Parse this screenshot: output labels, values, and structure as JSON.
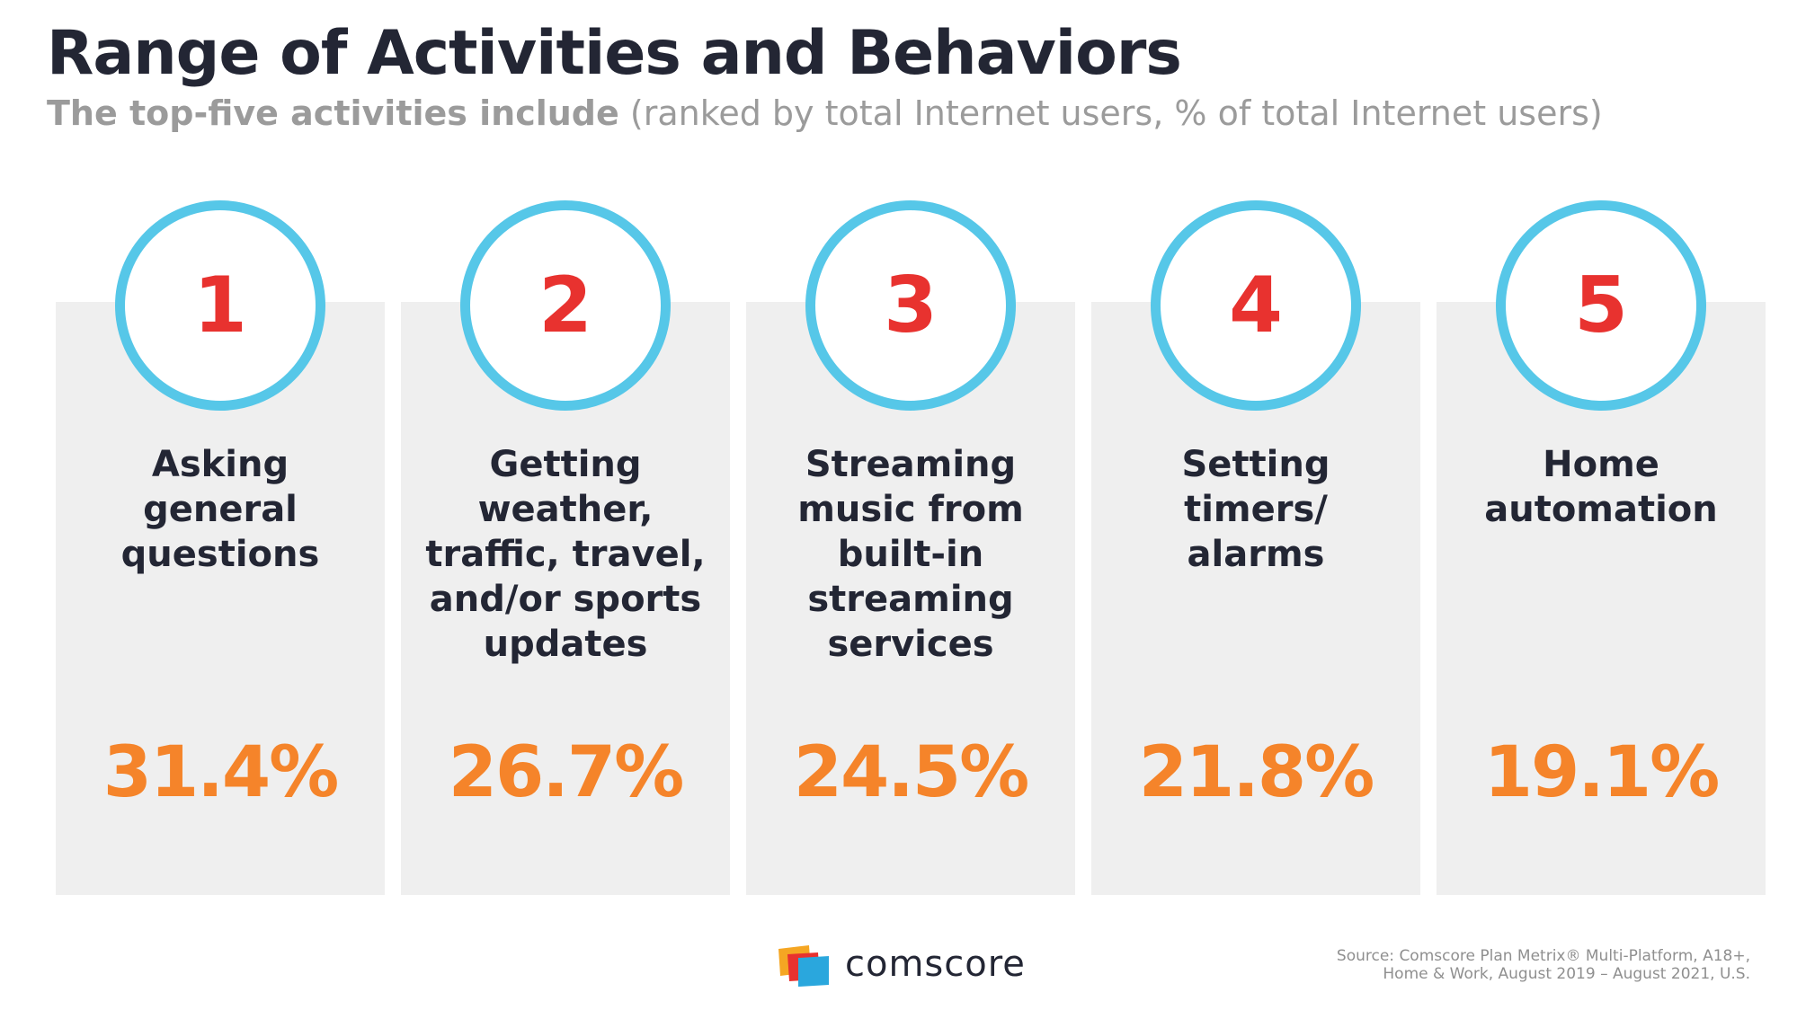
{
  "title": "Range of Activities and Behaviors",
  "subtitle": {
    "bold": "The top-five activities include",
    "normal": "(ranked by total Internet users, % of total Internet users)"
  },
  "chart_data": {
    "type": "table",
    "title": "Range of Activities and Behaviors",
    "subtitle": "The top-five activities include (ranked by total Internet users, % of total Internet users)",
    "items": [
      {
        "rank": "1",
        "label": "Asking general questions",
        "lines": [
          "Asking",
          "general",
          "questions"
        ],
        "value": 31.4,
        "value_text": "31.4%"
      },
      {
        "rank": "2",
        "label": "Getting weather, traffic, travel, and/or sports updates",
        "lines": [
          "Getting",
          "weather,",
          "traffic, travel,",
          "and/or sports",
          "updates"
        ],
        "value": 26.7,
        "value_text": "26.7%"
      },
      {
        "rank": "3",
        "label": "Streaming music from built-in streaming services",
        "lines": [
          "Streaming",
          "music from",
          "built-in",
          "streaming",
          "services"
        ],
        "value": 24.5,
        "value_text": "24.5%"
      },
      {
        "rank": "4",
        "label": "Setting timers/ alarms",
        "lines": [
          "Setting",
          "timers/",
          "alarms"
        ],
        "value": 21.8,
        "value_text": "21.8%"
      },
      {
        "rank": "5",
        "label": "Home automation",
        "lines": [
          "Home",
          "automation"
        ],
        "value": 19.1,
        "value_text": "19.1%"
      }
    ]
  },
  "footer": {
    "brand": "comscore",
    "source_line1": "Source: Comscore Plan Metrix® Multi-Platform, A18+,",
    "source_line2": "Home & Work, August 2019 – August 2021, U.S."
  },
  "colors": {
    "title": "#232634",
    "subtitle": "#9b9b9b",
    "card": "#efefef",
    "ring": "#56c7e8",
    "rank": "#e8322f",
    "value": "#f5842a"
  }
}
